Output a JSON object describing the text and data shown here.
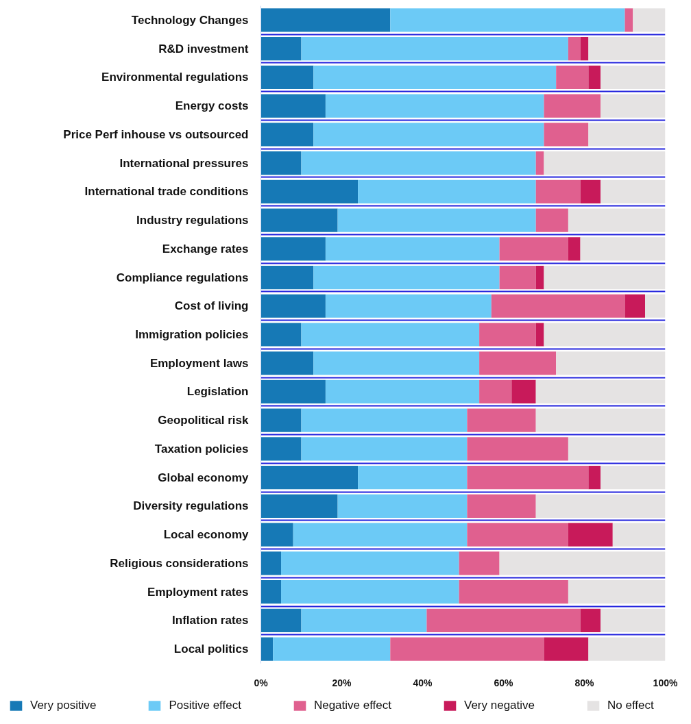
{
  "chart_data": {
    "type": "bar",
    "orientation": "horizontal",
    "stacked": true,
    "categories": [
      "Technology Changes",
      "R&D investment",
      "Environmental regulations",
      "Energy costs",
      "Price Perf inhouse vs outsourced",
      "International pressures",
      "International trade conditions",
      "Industry regulations",
      "Exchange rates",
      "Compliance regulations",
      "Cost of living",
      "Immigration policies",
      "Employment laws",
      "Legislation",
      "Geopolitical risk",
      "Taxation policies",
      "Global economy",
      "Diversity regulations",
      "Local economy",
      "Religious considerations",
      "Employment rates",
      "Inflation rates",
      "Local politics"
    ],
    "series": [
      {
        "name": "Very positive",
        "color": "#1679b6",
        "values": [
          32,
          10,
          13,
          16,
          13,
          10,
          24,
          19,
          16,
          13,
          16,
          10,
          13,
          16,
          10,
          10,
          24,
          19,
          8,
          5,
          5,
          10,
          3
        ]
      },
      {
        "name": "Positive effect",
        "color": "#6ccaf6",
        "values": [
          58,
          66,
          60,
          54,
          57,
          58,
          44,
          49,
          43,
          46,
          41,
          44,
          41,
          38,
          41,
          41,
          27,
          32,
          43,
          44,
          44,
          31,
          29
        ]
      },
      {
        "name": "Negative effect",
        "color": "#e0608f",
        "values": [
          2,
          3,
          8,
          14,
          11,
          2,
          11,
          8,
          17,
          9,
          33,
          14,
          19,
          8,
          17,
          25,
          30,
          17,
          25,
          10,
          27,
          38,
          38
        ]
      },
      {
        "name": "Very negative",
        "color": "#c81a5a",
        "values": [
          null,
          2,
          3,
          null,
          null,
          null,
          5,
          null,
          3,
          2,
          5,
          2,
          null,
          6,
          null,
          null,
          3,
          null,
          11,
          null,
          null,
          5,
          11
        ]
      },
      {
        "name": "No effect",
        "color": "#e5e3e3",
        "values": [
          8,
          19,
          16,
          16,
          19,
          30,
          16,
          24,
          21,
          30,
          5,
          30,
          27,
          32,
          32,
          24,
          16,
          32,
          13,
          41,
          24,
          16,
          19
        ]
      }
    ],
    "xlim": [
      0,
      100
    ],
    "xticks": [
      {
        "value": 0,
        "label": "0%"
      },
      {
        "value": 20,
        "label": "20%"
      },
      {
        "value": 40,
        "label": "40%"
      },
      {
        "value": 60,
        "label": "60%"
      },
      {
        "value": 80,
        "label": "80%"
      },
      {
        "value": 100,
        "label": "100%"
      }
    ],
    "grid": "y",
    "legend": "bottom"
  }
}
